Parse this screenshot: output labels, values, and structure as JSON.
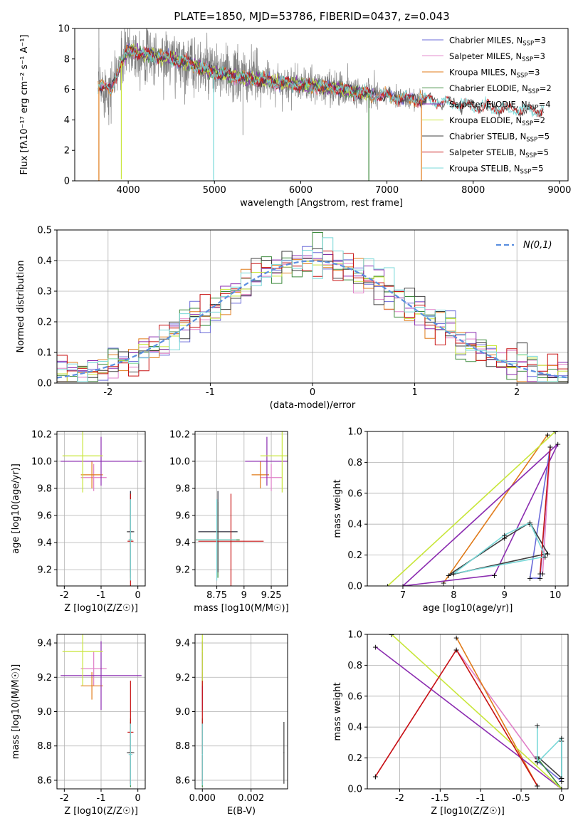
{
  "title": "PLATE=1850, MJD=53786, FIBERID=0437, z=0.043",
  "colors": {
    "chabrier_miles": "#6a6ad8",
    "salpeter_miles": "#e080c8",
    "kroupa_miles": "#e07b1a",
    "chabrier_elodie": "#3c8a3c",
    "salpeter_elodie": "#8b2cb0",
    "kroupa_elodie": "#c8e63a",
    "chabrier_stelib": "#404040",
    "salpeter_stelib": "#c81414",
    "kroupa_stelib": "#78d8d8",
    "data": "#808080",
    "gaussian": "#5b8fe0"
  },
  "legend_spectrum": [
    {
      "key": "chabrier_miles",
      "text": "Chabrier MILES, N",
      "sub": "SSP",
      "tail": "=3"
    },
    {
      "key": "salpeter_miles",
      "text": "Salpeter MILES, N",
      "sub": "SSP",
      "tail": "=3"
    },
    {
      "key": "kroupa_miles",
      "text": "Kroupa MILES, N",
      "sub": "SSP",
      "tail": "=3"
    },
    {
      "key": "chabrier_elodie",
      "text": "Chabrier ELODIE, N",
      "sub": "SSP",
      "tail": "=2"
    },
    {
      "key": "salpeter_elodie",
      "text": "Salpeter ELODIE, N",
      "sub": "SSP",
      "tail": "=4"
    },
    {
      "key": "kroupa_elodie",
      "text": "Kroupa ELODIE, N",
      "sub": "SSP",
      "tail": "=2"
    },
    {
      "key": "chabrier_stelib",
      "text": "Chabrier STELIB, N",
      "sub": "SSP",
      "tail": "=5"
    },
    {
      "key": "salpeter_stelib",
      "text": "Salpeter STELIB, N",
      "sub": "SSP",
      "tail": "=5"
    },
    {
      "key": "kroupa_stelib",
      "text": "Kroupa STELIB, N",
      "sub": "SSP",
      "tail": "=5"
    }
  ],
  "chart_data": [
    {
      "type": "line",
      "xlabel": "wavelength [Angstrom, rest frame]",
      "ylabel": "Flux [fλ10⁻¹⁷ erg cm⁻² s⁻¹ A⁻¹]",
      "xlim": [
        3380,
        9100
      ],
      "ylim": [
        0,
        10
      ],
      "xticks": [
        4000,
        5000,
        6000,
        7000,
        8000,
        9000
      ],
      "yticks": [
        0,
        2,
        4,
        6,
        8,
        10
      ],
      "spectrum_points": [
        [
          3650,
          6.2
        ],
        [
          3800,
          6.0
        ],
        [
          3900,
          7.5
        ],
        [
          4000,
          8.6
        ],
        [
          4200,
          8.3
        ],
        [
          4400,
          8.1
        ],
        [
          4600,
          7.9
        ],
        [
          4800,
          7.5
        ],
        [
          5000,
          7.1
        ],
        [
          5300,
          6.8
        ],
        [
          5600,
          6.6
        ],
        [
          6000,
          6.3
        ],
        [
          6400,
          6.1
        ],
        [
          6800,
          5.7
        ],
        [
          7200,
          5.4
        ],
        [
          7600,
          5.2
        ],
        [
          8000,
          4.9
        ],
        [
          8400,
          4.7
        ],
        [
          8800,
          4.6
        ]
      ],
      "dips": [
        [
          3660,
          0
        ],
        [
          3920,
          0.1
        ],
        [
          4990,
          0
        ],
        [
          6790,
          0
        ],
        [
          7400,
          0
        ]
      ]
    },
    {
      "type": "line",
      "xlabel": "(data-model)/error",
      "ylabel": "Normed distribution",
      "xlim": [
        -2.5,
        2.5
      ],
      "ylim": [
        0,
        0.5
      ],
      "xticks": [
        -2,
        -1,
        0,
        1,
        2
      ],
      "yticks": [
        0.0,
        0.1,
        0.2,
        0.3,
        0.4,
        0.5
      ],
      "series": [
        {
          "name": "N(0,1)",
          "mu": 0,
          "sigma": 1
        }
      ],
      "histogram_bins": 50
    },
    {
      "type": "scatter",
      "xlabel": "Z [log10(Z/Z☉)]",
      "ylabel": "age [log10(age/yr)]",
      "xlim": [
        -2.2,
        0.2
      ],
      "ylim": [
        9.08,
        10.22
      ],
      "xticks": [
        -2,
        -1,
        0
      ],
      "yticks": [
        9.2,
        9.4,
        9.6,
        9.8,
        10.0,
        10.2
      ]
    },
    {
      "type": "scatter",
      "xlabel": "mass [log10(M/M☉)]",
      "xlim": [
        8.55,
        9.4
      ],
      "ylim": [
        9.08,
        10.22
      ],
      "xticks": [
        8.75,
        9.0,
        9.25
      ],
      "yticks": [
        9.2,
        9.4,
        9.6,
        9.8,
        10.0,
        10.2
      ]
    },
    {
      "type": "line",
      "xlabel": "age [log10(age/yr)]",
      "ylabel": "mass weight",
      "xlim": [
        6.3,
        10.25
      ],
      "ylim": [
        0,
        1
      ],
      "xticks": [
        7,
        8,
        9,
        10
      ],
      "yticks": [
        0.0,
        0.2,
        0.4,
        0.6,
        0.8,
        1.0
      ]
    },
    {
      "type": "scatter",
      "xlabel": "Z [log10(Z/Z☉)]",
      "ylabel": "mass [log10(M/M☉)]",
      "xlim": [
        -2.2,
        0.2
      ],
      "ylim": [
        8.55,
        9.45
      ],
      "xticks": [
        -2,
        -1,
        0
      ],
      "yticks": [
        8.6,
        8.8,
        9.0,
        9.2,
        9.4
      ]
    },
    {
      "type": "scatter",
      "xlabel": "E(B-V)",
      "xlim": [
        -0.0003,
        0.0035
      ],
      "ylim": [
        8.55,
        9.45
      ],
      "xticks": [
        0.0,
        0.002
      ],
      "xticklabels": [
        "0.000",
        "0.002"
      ],
      "yticks": [
        8.6,
        8.8,
        9.0,
        9.2,
        9.4
      ]
    },
    {
      "type": "line",
      "xlabel": "Z [log10(Z/Z☉)]",
      "ylabel": "mass weight",
      "xlim": [
        -2.4,
        0.08
      ],
      "ylim": [
        0,
        1
      ],
      "xticks": [
        -2.0,
        -1.5,
        -1.0,
        -0.5,
        0.0
      ],
      "yticks": [
        0.0,
        0.2,
        0.4,
        0.6,
        0.8,
        1.0
      ]
    }
  ],
  "models": [
    {
      "key": "chabrier_miles",
      "z": -0.2,
      "age": 9.48,
      "mass": 8.76,
      "ebv": 0.0,
      "zerr": 0.05,
      "ageerr": 0.3,
      "masserr": 0.18,
      "agebars": [
        [
          9.5,
          0.05
        ],
        [
          9.9,
          0.9
        ],
        [
          9.7,
          0.05
        ]
      ]
    },
    {
      "key": "salpeter_miles",
      "z": -1.2,
      "age": 9.88,
      "mass": 9.25,
      "ebv": 0.0,
      "zerr": 0.35,
      "ageerr": 0.1,
      "masserr": 0.1,
      "agebars": [
        [
          9.75,
          0.08
        ],
        [
          9.9,
          0.9
        ]
      ]
    },
    {
      "key": "kroupa_miles",
      "z": -1.25,
      "age": 9.9,
      "mass": 9.15,
      "ebv": 0.0,
      "zerr": 0.3,
      "ageerr": 0.1,
      "masserr": 0.08,
      "agebars": [
        [
          7.8,
          0.02
        ],
        [
          9.85,
          0.98
        ]
      ]
    },
    {
      "key": "chabrier_elodie",
      "z": -0.2,
      "age": 9.42,
      "mass": 8.76,
      "ebv": 0.0,
      "zerr": 0.05,
      "ageerr": 0.28,
      "masserr": 0.2,
      "agebars": [
        [
          9.5,
          0.4
        ]
      ]
    },
    {
      "key": "salpeter_elodie",
      "z": -1.0,
      "age": 10.0,
      "mass": 9.21,
      "ebv": 0.0,
      "zerr": 1.1,
      "ageerr": 0.18,
      "masserr": 0.2,
      "agebars": [
        [
          7.0,
          0.0
        ],
        [
          8.8,
          0.07
        ],
        [
          10.05,
          0.92
        ]
      ]
    },
    {
      "key": "kroupa_elodie",
      "z": -1.5,
      "age": 10.04,
      "mass": 9.35,
      "ebv": 0.0,
      "zerr": 0.55,
      "ageerr": 0.27,
      "masserr": 0.2,
      "agebars": [
        [
          6.7,
          0.0
        ],
        [
          10.0,
          1.0
        ]
      ]
    },
    {
      "key": "chabrier_stelib",
      "z": -0.2,
      "age": 9.48,
      "mass": 8.76,
      "ebv": 0.00335,
      "zerr": 0.1,
      "ageerr": 0.3,
      "masserr": 0.18,
      "agebars": [
        [
          7.9,
          0.07
        ],
        [
          9.0,
          0.31
        ],
        [
          9.5,
          0.41
        ],
        [
          9.85,
          0.21
        ]
      ]
    },
    {
      "key": "salpeter_stelib",
      "z": -0.2,
      "age": 9.41,
      "mass": 8.88,
      "ebv": 0.0,
      "zerr": 0.08,
      "ageerr": 0.35,
      "masserr": 0.3,
      "agebars": [
        [
          9.7,
          0.08
        ],
        [
          9.9,
          0.9
        ]
      ]
    },
    {
      "key": "kroupa_stelib",
      "z": -0.2,
      "age": 9.42,
      "mass": 8.75,
      "ebv": 0.0,
      "zerr": 0.05,
      "ageerr": 0.3,
      "masserr": 0.18,
      "agebars": [
        [
          8.0,
          0.08
        ],
        [
          9.0,
          0.33
        ],
        [
          9.5,
          0.41
        ],
        [
          9.8,
          0.19
        ]
      ]
    }
  ]
}
